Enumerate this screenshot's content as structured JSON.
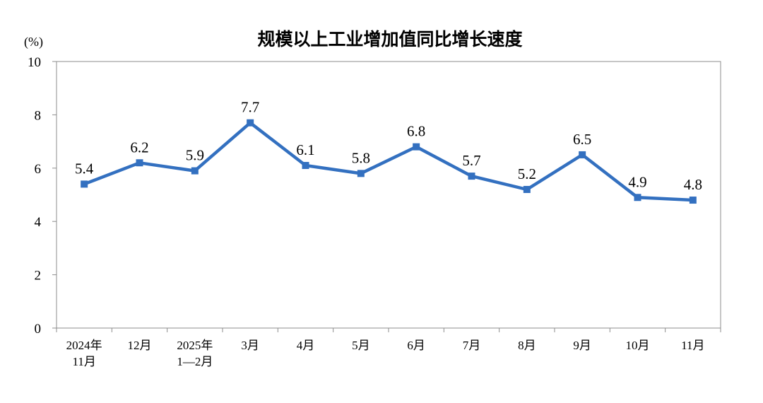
{
  "chart_data": {
    "type": "line",
    "title": "规模以上工业增加值同比增长速度",
    "unit": "(%)",
    "categories": [
      [
        "2024年",
        "11月"
      ],
      [
        "12月"
      ],
      [
        "2025年",
        "1—2月"
      ],
      [
        "3月"
      ],
      [
        "4月"
      ],
      [
        "5月"
      ],
      [
        "6月"
      ],
      [
        "7月"
      ],
      [
        "8月"
      ],
      [
        "9月"
      ],
      [
        "10月"
      ],
      [
        "11月"
      ]
    ],
    "values": [
      5.4,
      6.2,
      5.9,
      7.7,
      6.1,
      5.8,
      6.8,
      5.7,
      5.2,
      6.5,
      4.9,
      4.8
    ],
    "data_labels": [
      "5.4",
      "6.2",
      "5.9",
      "7.7",
      "6.1",
      "5.8",
      "6.8",
      "5.7",
      "5.2",
      "6.5",
      "4.9",
      "4.8"
    ],
    "y_ticks": [
      "0",
      "2",
      "4",
      "6",
      "8",
      "10"
    ],
    "ylim": [
      0,
      10
    ],
    "grid": false,
    "legend": "none",
    "line_color": "#3370C0"
  }
}
